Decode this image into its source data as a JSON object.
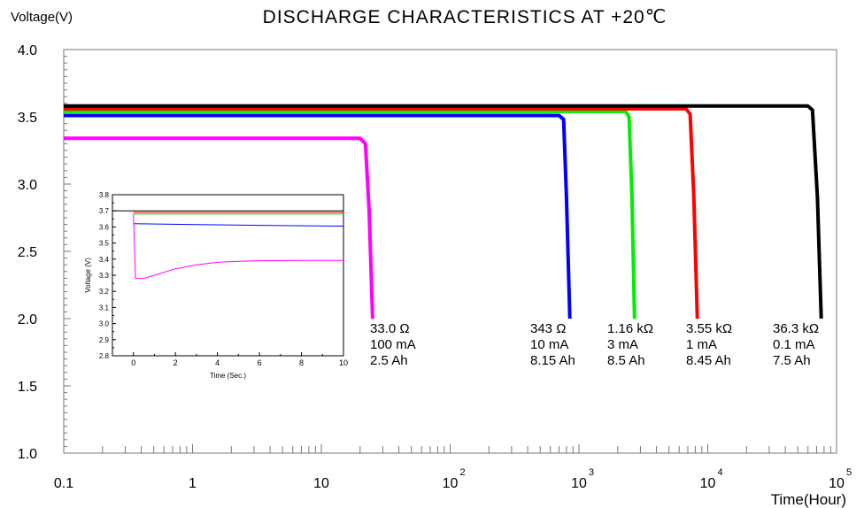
{
  "chart_data": [
    {
      "type": "line",
      "title": "DISCHARGE CHARACTERISTICS AT +20℃",
      "xlabel": "Time(Hour)",
      "ylabel": "Voltage(V)",
      "xscale": "log",
      "xlim": [
        0.1,
        100000
      ],
      "ylim": [
        1.0,
        4.0
      ],
      "xticks": [
        {
          "value": 0.1,
          "base": "0.1",
          "exp": ""
        },
        {
          "value": 1,
          "base": "1",
          "exp": ""
        },
        {
          "value": 10,
          "base": "10",
          "exp": ""
        },
        {
          "value": 100,
          "base": "10",
          "exp": "2"
        },
        {
          "value": 1000,
          "base": "10",
          "exp": "3"
        },
        {
          "value": 10000,
          "base": "10",
          "exp": "4"
        },
        {
          "value": 100000,
          "base": "10",
          "exp": "5"
        }
      ],
      "yticks": [
        {
          "value": 1.0,
          "label": "1.0"
        },
        {
          "value": 1.5,
          "label": "1.5"
        },
        {
          "value": 2.0,
          "label": "2.0"
        },
        {
          "value": 2.5,
          "label": "2.5"
        },
        {
          "value": 3.0,
          "label": "3.0"
        },
        {
          "value": 3.5,
          "label": "3.5"
        },
        {
          "value": 4.0,
          "label": "4.0"
        }
      ],
      "grid": false,
      "series": [
        {
          "color": "#ff00ff",
          "plateau": 3.34,
          "knee": 20,
          "end": 25,
          "points": [
            [
              0.1,
              3.34
            ],
            [
              20,
              3.34
            ],
            [
              22,
              3.3
            ],
            [
              23.5,
              2.8
            ],
            [
              25,
              2.0
            ]
          ],
          "labels": [
            "33.0  Ω",
            "100 mA",
            "2.5  Ah"
          ]
        },
        {
          "color": "#0000ff",
          "plateau": 3.51,
          "knee": 700,
          "end": 850,
          "points": [
            [
              0.1,
              3.51
            ],
            [
              700,
              3.51
            ],
            [
              760,
              3.48
            ],
            [
              800,
              2.9
            ],
            [
              850,
              2.0
            ]
          ],
          "labels": [
            "343  Ω",
            "10  mA",
            "8.15 Ah"
          ]
        },
        {
          "color": "#00ee00",
          "plateau": 3.54,
          "knee": 2300,
          "end": 2700,
          "points": [
            [
              0.1,
              3.54
            ],
            [
              2300,
              3.54
            ],
            [
              2450,
              3.5
            ],
            [
              2580,
              2.9
            ],
            [
              2700,
              2.0
            ]
          ],
          "labels": [
            "1.16  kΩ",
            "3 mA",
            "8.5 Ah"
          ]
        },
        {
          "color": "#ff0000",
          "plateau": 3.56,
          "knee": 6800,
          "end": 8300,
          "points": [
            [
              0.1,
              3.56
            ],
            [
              6800,
              3.56
            ],
            [
              7300,
              3.52
            ],
            [
              7800,
              2.9
            ],
            [
              8300,
              2.0
            ]
          ],
          "labels": [
            "3.55 kΩ",
            "1  mA",
            "8.45 Ah"
          ]
        },
        {
          "color": "#000000",
          "plateau": 3.58,
          "knee": 60000,
          "end": 76000,
          "points": [
            [
              0.1,
              3.58
            ],
            [
              60000,
              3.58
            ],
            [
              65000,
              3.55
            ],
            [
              71000,
              2.9
            ],
            [
              76000,
              2.0
            ]
          ],
          "labels": [
            "36.3  kΩ",
            "0.1 mA",
            "7.5  Ah"
          ]
        }
      ]
    },
    {
      "type": "line",
      "title": "",
      "xlabel": "Time (Sec.)",
      "ylabel": "Voltage (V)",
      "xlim": [
        -1,
        10
      ],
      "ylim": [
        2.8,
        3.8
      ],
      "xticks": [
        "0",
        "2",
        "4",
        "6",
        "8",
        "10"
      ],
      "yticks": [
        "2.8",
        "2.9",
        "3.0",
        "3.1",
        "3.2",
        "3.3",
        "3.4",
        "3.5",
        "3.6",
        "3.7",
        "3.8"
      ],
      "grid": false,
      "series": [
        {
          "color": "#000000",
          "points": [
            [
              -1,
              3.7
            ],
            [
              10,
              3.7
            ]
          ]
        },
        {
          "color": "#ff0000",
          "points": [
            [
              0,
              3.69
            ],
            [
              10,
              3.69
            ]
          ]
        },
        {
          "color": "#00ee00",
          "points": [
            [
              0,
              3.68
            ],
            [
              10,
              3.68
            ]
          ]
        },
        {
          "color": "#0000ff",
          "points": [
            [
              0,
              3.62
            ],
            [
              3,
              3.615
            ],
            [
              6,
              3.61
            ],
            [
              10,
              3.605
            ]
          ]
        },
        {
          "color": "#ff00ff",
          "points": [
            [
              0,
              3.68
            ],
            [
              0.1,
              3.28
            ],
            [
              0.5,
              3.28
            ],
            [
              1,
              3.3
            ],
            [
              2,
              3.34
            ],
            [
              3,
              3.365
            ],
            [
              4,
              3.38
            ],
            [
              5,
              3.387
            ],
            [
              6,
              3.39
            ],
            [
              8,
              3.392
            ],
            [
              10,
              3.392
            ]
          ]
        }
      ]
    }
  ]
}
